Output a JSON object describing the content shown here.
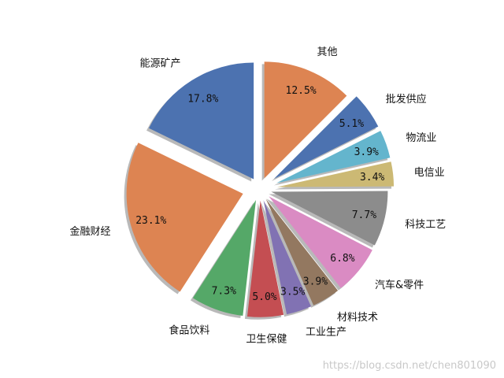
{
  "chart_data": {
    "type": "pie",
    "start_angle_deg": 90,
    "direction": "clockwise",
    "slices": [
      {
        "label": "其他",
        "value": 12.5,
        "color": "#dd8452",
        "explode": 0.1
      },
      {
        "label": "批发供应",
        "value": 5.1,
        "color": "#4c72b0",
        "explode": 0.15
      },
      {
        "label": "物流业",
        "value": 3.9,
        "color": "#64b5cd",
        "explode": 0.15
      },
      {
        "label": "电信业",
        "value": 3.4,
        "color": "#ccb974",
        "explode": 0.15
      },
      {
        "label": "科技工艺",
        "value": 7.7,
        "color": "#8c8c8c",
        "explode": 0.1
      },
      {
        "label": "汽车&零件",
        "value": 6.8,
        "color": "#da8bc3",
        "explode": 0.1
      },
      {
        "label": "材料技术",
        "value": 3.9,
        "color": "#937860",
        "explode": 0.1
      },
      {
        "label": "工业生产",
        "value": 3.5,
        "color": "#8172b3",
        "explode": 0.1
      },
      {
        "label": "卫生保健",
        "value": 5.0,
        "color": "#c44e52",
        "explode": 0.1
      },
      {
        "label": "食品饮料",
        "value": 7.3,
        "color": "#55a868",
        "explode": 0.1
      },
      {
        "label": "金融财经",
        "value": 23.1,
        "color": "#dd8452",
        "explode": 0.15
      },
      {
        "label": "能源矿产",
        "value": 17.8,
        "color": "#4c72b0",
        "explode": 0.1
      }
    ],
    "shadow": true
  },
  "watermark": "https://blog.csdn.net/chen801090"
}
